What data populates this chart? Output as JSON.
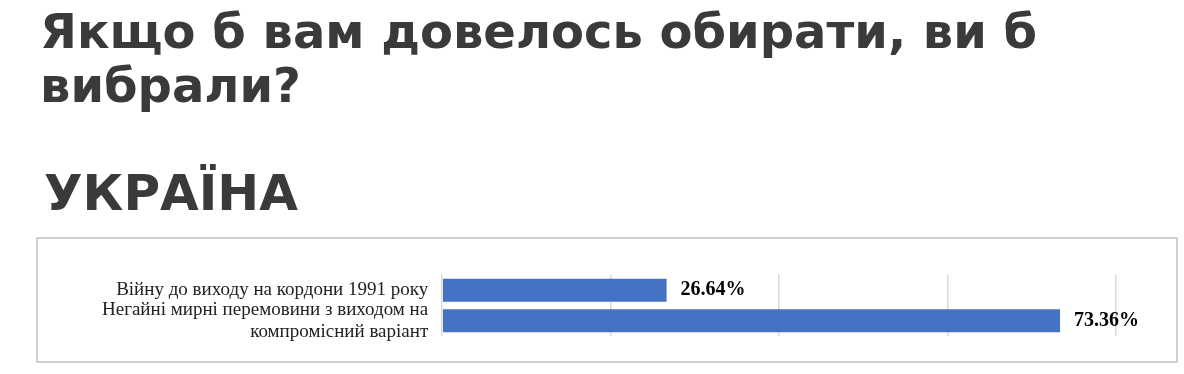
{
  "chart_data": {
    "type": "bar",
    "orientation": "horizontal",
    "title": "Якщо б вам довелось обирати, ви б вибрали?",
    "subtitle": "УКРАЇНА",
    "categories": [
      "Війну до виходу на кордони 1991 року",
      "Негайні мирні перемовини з виходом на компромісний варіант"
    ],
    "values": [
      26.64,
      73.36
    ],
    "color": "#4472c4",
    "value_labels": [
      "26.64%",
      "73.36%"
    ],
    "xlim": [
      0,
      80
    ],
    "xticks": [
      {
        "value": 0,
        "label": null
      },
      {
        "value": 20,
        "label": null
      },
      {
        "value": 40,
        "label": null
      },
      {
        "value": 60,
        "label": null
      },
      {
        "value": 80,
        "label": null
      }
    ],
    "grid": "x",
    "tick_labels": "y",
    "legend": false
  }
}
